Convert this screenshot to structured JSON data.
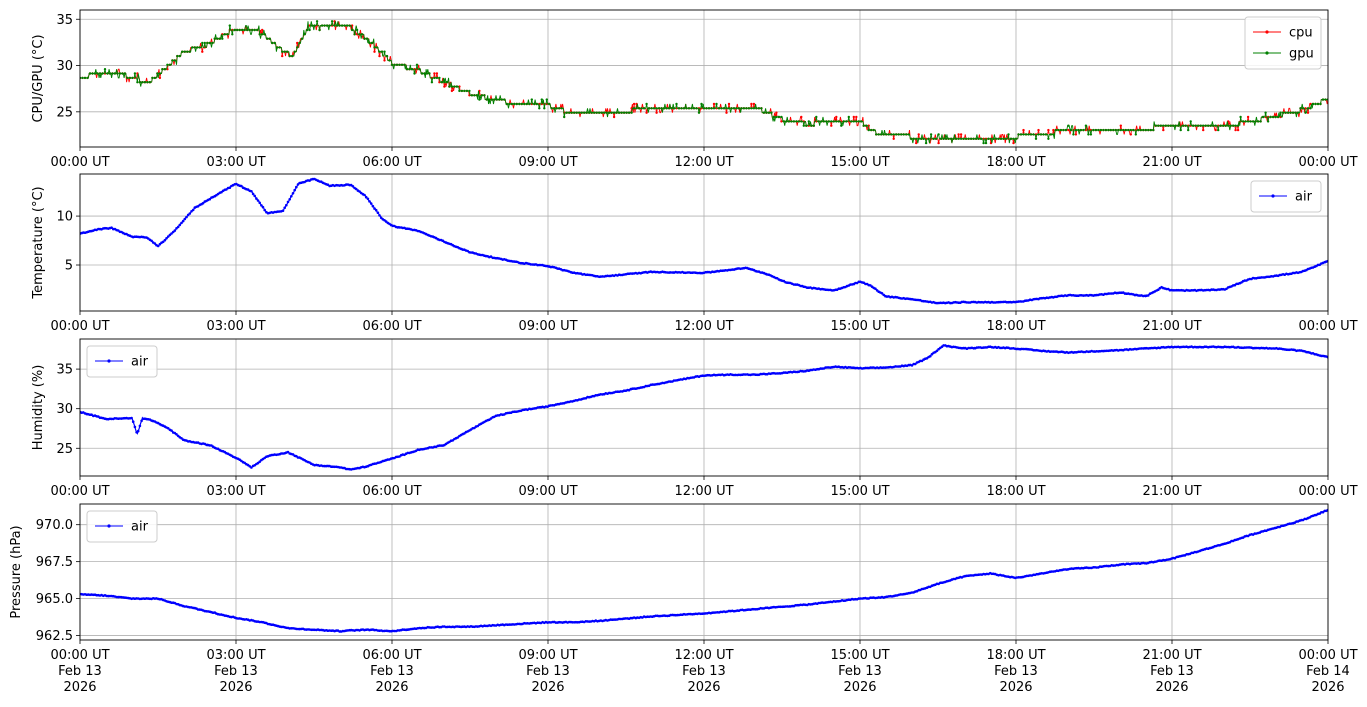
{
  "chart_data": [
    {
      "type": "line",
      "ylabel": "CPU/GPU (°C)",
      "xlim": [
        "2026-02-13 00:00",
        "2026-02-14 00:00"
      ],
      "ylim": [
        21.2,
        36
      ],
      "yticks": [
        25,
        30,
        35
      ],
      "ytick_labels": [
        "25",
        "30",
        "35"
      ],
      "xtick_labels": [
        "00:00 UT",
        "03:00 UT",
        "06:00 UT",
        "09:00 UT",
        "12:00 UT",
        "15:00 UT",
        "18:00 UT",
        "21:00 UT",
        "00:00 UT"
      ],
      "grid": true,
      "legend": "upper-right",
      "series": [
        {
          "name": "cpu",
          "color": "#ff0000",
          "x_hours": [
            0,
            0.5,
            1,
            1.3,
            1.6,
            2,
            2.5,
            2.8,
            3.2,
            3.5,
            3.8,
            4.1,
            4.4,
            4.8,
            5.2,
            5.5,
            6,
            6.5,
            7,
            7.5,
            8,
            8.5,
            9,
            9.5,
            10,
            11,
            12,
            13,
            13.5,
            14,
            15,
            15.3,
            16,
            17,
            18,
            18.5,
            19,
            20,
            21,
            22,
            22.5,
            23,
            23.5,
            24
          ],
          "values": [
            28.7,
            29.3,
            28.8,
            28,
            29.5,
            31.5,
            32.3,
            33.5,
            34.1,
            33.5,
            32,
            31,
            34.3,
            34.5,
            34.1,
            33,
            30.3,
            29.5,
            28.2,
            27,
            26.2,
            25.9,
            25.7,
            24.8,
            24.9,
            25.3,
            25.4,
            25.4,
            24.2,
            23.7,
            24,
            22.8,
            22.3,
            22.3,
            22.3,
            22.6,
            23,
            23.2,
            23.3,
            23.4,
            24,
            24.5,
            25.2,
            26.4
          ]
        },
        {
          "name": "gpu",
          "color": "#008000",
          "x_hours": [
            0,
            0.5,
            1,
            1.3,
            1.6,
            2,
            2.5,
            2.8,
            3.2,
            3.5,
            3.8,
            4.1,
            4.4,
            4.8,
            5.2,
            5.5,
            6,
            6.5,
            7,
            7.5,
            8,
            8.5,
            9,
            9.5,
            10,
            11,
            12,
            13,
            13.5,
            14,
            15,
            15.3,
            16,
            17,
            18,
            18.5,
            19,
            20,
            21,
            22,
            22.5,
            23,
            23.5,
            24
          ],
          "values": [
            28.7,
            29.3,
            28.8,
            28,
            29.5,
            31.5,
            32.3,
            33.5,
            34.1,
            33.5,
            32,
            31,
            34.3,
            34.5,
            34.1,
            33,
            30.3,
            29.5,
            28.2,
            27,
            26.2,
            25.9,
            25.7,
            24.8,
            24.9,
            25.3,
            25.4,
            25.4,
            24.2,
            23.7,
            24,
            22.8,
            22.3,
            22.3,
            22.3,
            22.6,
            23,
            23.2,
            23.3,
            23.4,
            24,
            24.5,
            25.2,
            26.4
          ]
        }
      ]
    },
    {
      "type": "line",
      "ylabel": "Temperature (°C)",
      "xlim": [
        "2026-02-13 00:00",
        "2026-02-14 00:00"
      ],
      "ylim": [
        0.3,
        14.3
      ],
      "yticks": [
        5,
        10
      ],
      "ytick_labels": [
        "5",
        "10"
      ],
      "xtick_labels": [
        "00:00 UT",
        "03:00 UT",
        "06:00 UT",
        "09:00 UT",
        "12:00 UT",
        "15:00 UT",
        "18:00 UT",
        "21:00 UT",
        "00:00 UT"
      ],
      "grid": true,
      "legend": "upper-right",
      "series": [
        {
          "name": "air",
          "color": "#0000ff",
          "x_hours": [
            0,
            0.3,
            0.6,
            1,
            1.3,
            1.5,
            1.8,
            2.2,
            2.6,
            3,
            3.3,
            3.6,
            3.9,
            4.2,
            4.5,
            4.8,
            5.2,
            5.5,
            5.8,
            6,
            6.5,
            7,
            7.5,
            8,
            8.5,
            9,
            9.5,
            10,
            11,
            12,
            12.8,
            13.2,
            13.6,
            14,
            14.5,
            15,
            15.2,
            15.5,
            16,
            16.5,
            17,
            18,
            18.5,
            19,
            19.5,
            20,
            20.5,
            20.8,
            21,
            21.5,
            22,
            22.5,
            23,
            23.5,
            24
          ],
          "values": [
            8.2,
            8.6,
            8.8,
            7.9,
            7.8,
            6.9,
            8.4,
            10.8,
            12.1,
            13.3,
            12.5,
            10.3,
            10.5,
            13.3,
            13.8,
            13.1,
            13.2,
            12,
            9.8,
            9,
            8.5,
            7.4,
            6.3,
            5.7,
            5.2,
            4.9,
            4.2,
            3.8,
            4.3,
            4.2,
            4.7,
            4.1,
            3.2,
            2.7,
            2.4,
            3.3,
            2.9,
            1.8,
            1.5,
            1.1,
            1.2,
            1.2,
            1.6,
            1.9,
            1.9,
            2.2,
            1.8,
            2.7,
            2.4,
            2.4,
            2.5,
            3.6,
            3.9,
            4.3,
            5.4
          ]
        }
      ]
    },
    {
      "type": "line",
      "ylabel": "Humidity (%)",
      "xlim": [
        "2026-02-13 00:00",
        "2026-02-14 00:00"
      ],
      "ylim": [
        21.5,
        38.8
      ],
      "yticks": [
        25,
        30,
        35
      ],
      "ytick_labels": [
        "25",
        "30",
        "35"
      ],
      "xtick_labels": [
        "00:00 UT",
        "03:00 UT",
        "06:00 UT",
        "09:00 UT",
        "12:00 UT",
        "15:00 UT",
        "18:00 UT",
        "21:00 UT",
        "00:00 UT"
      ],
      "grid": true,
      "legend": "upper-left",
      "series": [
        {
          "name": "air",
          "color": "#0000ff",
          "x_hours": [
            0,
            0.5,
            1,
            1.1,
            1.2,
            1.4,
            1.7,
            2,
            2.5,
            3,
            3.3,
            3.6,
            4,
            4.5,
            5,
            5.2,
            5.5,
            6,
            6.5,
            7,
            7.5,
            8,
            8.5,
            9,
            9.5,
            10,
            10.5,
            11,
            12,
            12.5,
            13,
            13.5,
            14,
            14.5,
            15,
            15.5,
            16,
            16.3,
            16.6,
            17,
            17.5,
            18,
            18.5,
            19,
            20,
            21,
            22,
            23,
            23.5,
            24
          ],
          "values": [
            29.6,
            28.7,
            28.8,
            26.8,
            28.8,
            28.5,
            27.5,
            26,
            25.4,
            23.8,
            22.6,
            24,
            24.5,
            22.9,
            22.6,
            22.3,
            22.7,
            23.7,
            24.8,
            25.4,
            27.3,
            29.1,
            29.8,
            30.3,
            31,
            31.8,
            32.3,
            33,
            34.2,
            34.3,
            34.3,
            34.5,
            34.8,
            35.3,
            35.1,
            35.2,
            35.5,
            36.4,
            38,
            37.6,
            37.8,
            37.6,
            37.3,
            37.1,
            37.4,
            37.8,
            37.8,
            37.6,
            37.3,
            36.5
          ]
        }
      ]
    },
    {
      "type": "line",
      "ylabel": "Pressure (hPa)",
      "xlim": [
        "2026-02-13 00:00",
        "2026-02-14 00:00"
      ],
      "ylim": [
        962.2,
        971.4
      ],
      "yticks": [
        962.5,
        965.0,
        967.5,
        970.0
      ],
      "ytick_labels": [
        "962.5",
        "965.0",
        "967.5",
        "970.0"
      ],
      "xtick_labels": [
        "00:00 UT\nFeb 13\n2026",
        "03:00 UT\nFeb 13\n2026",
        "06:00 UT\nFeb 13\n2026",
        "09:00 UT\nFeb 13\n2026",
        "12:00 UT\nFeb 13\n2026",
        "15:00 UT\nFeb 13\n2026",
        "18:00 UT\nFeb 13\n2026",
        "21:00 UT\nFeb 13\n2026",
        "00:00 UT\nFeb 14\n2026"
      ],
      "grid": true,
      "legend": "upper-left",
      "series": [
        {
          "name": "air",
          "color": "#0000ff",
          "x_hours": [
            0,
            0.5,
            1,
            1.5,
            2,
            2.5,
            3,
            3.5,
            4,
            4.5,
            5,
            5.5,
            6,
            6.5,
            7,
            7.5,
            8,
            8.5,
            9,
            9.5,
            10,
            11,
            12,
            13,
            14,
            14.5,
            15,
            15.5,
            16,
            16.5,
            17,
            17.5,
            18,
            18.5,
            19,
            19.5,
            20,
            20.5,
            21,
            21.5,
            22,
            22.5,
            23,
            23.5,
            24
          ],
          "values": [
            965.3,
            965.2,
            965,
            965,
            964.5,
            964.1,
            963.7,
            963.4,
            963,
            962.9,
            962.8,
            962.9,
            962.8,
            963,
            963.1,
            963.1,
            963.2,
            963.3,
            963.4,
            963.4,
            963.5,
            963.8,
            964,
            964.3,
            964.6,
            964.8,
            965,
            965.1,
            965.4,
            966,
            966.5,
            966.7,
            966.4,
            966.7,
            967,
            967.1,
            967.3,
            967.4,
            967.7,
            968.2,
            968.7,
            969.3,
            969.8,
            970.3,
            971
          ]
        }
      ]
    }
  ]
}
